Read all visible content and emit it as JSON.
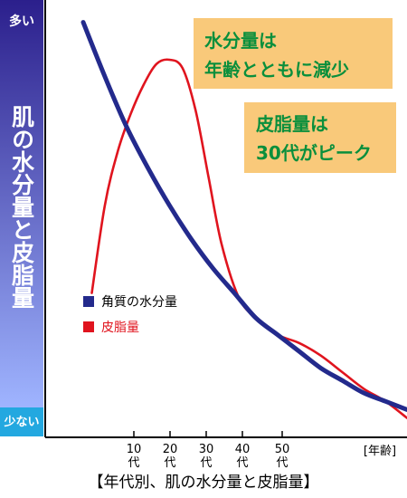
{
  "page": {
    "y_axis_top": "多い",
    "y_axis_bottom": "少ない",
    "y_title": "肌の水分量と皮脂量",
    "x_unit": "[年齢]",
    "caption": "【年代別、肌の水分量と皮脂量】",
    "callout_water": [
      "水分量は",
      "年齢とともに減少"
    ],
    "callout_sebum": [
      "皮脂量は",
      "30代がピーク"
    ]
  },
  "colors": {
    "water": "#232a8c",
    "sebum": "#e0141e",
    "callout_bg": "#f9c97a",
    "callout_text": "#0a8f3c",
    "band_top": "#2b1f8c",
    "band_bottom": "#9fb4ff",
    "band_tip": "#23a8e0"
  },
  "chart_data": {
    "type": "line",
    "ylabel": "肌の水分量と皮脂量",
    "xlabel": "[年齢]",
    "categories": [
      "10代",
      "20代",
      "30代",
      "40代",
      "50代"
    ],
    "xlim": [
      0,
      75
    ],
    "ylim": [
      0,
      100
    ],
    "grid": false,
    "legend": "middle-left",
    "series": [
      {
        "name": "角質の水分量",
        "x": [
          0,
          5,
          10,
          15,
          20,
          25,
          30,
          35,
          40,
          45,
          50,
          55,
          60,
          65,
          70,
          75
        ],
        "values": [
          99,
          86,
          74,
          64,
          55,
          47,
          40,
          34,
          28,
          24,
          20,
          16,
          13,
          10,
          8,
          6
        ]
      },
      {
        "name": "皮脂量",
        "x": [
          2,
          5,
          8,
          11,
          14,
          17,
          20,
          23,
          26,
          29,
          32,
          36,
          40,
          45,
          50,
          55,
          60,
          65,
          70,
          75
        ],
        "values": [
          34,
          55,
          68,
          77,
          84,
          89,
          90,
          88,
          78,
          62,
          46,
          33,
          28,
          24,
          22,
          19,
          15,
          11,
          8,
          4
        ]
      }
    ]
  }
}
